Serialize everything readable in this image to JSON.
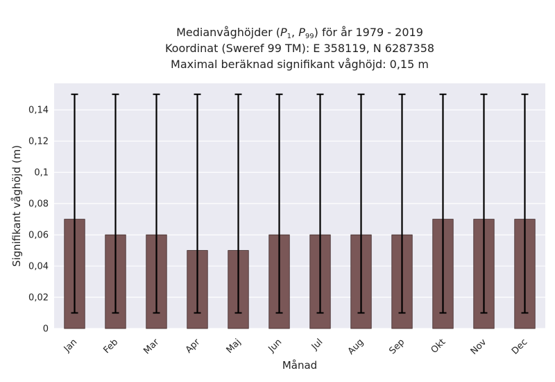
{
  "chart_data": {
    "type": "bar",
    "title": {
      "prefix": "Medianvåghöjder (",
      "p1_base": "P",
      "p1_sub": "1",
      "separator": ", ",
      "p99_base": "P",
      "p99_sub": "99",
      "suffix": ") för år 1979 - 2019",
      "line2": "Koordinat (Sweref 99 TM): E 358119, N 6287358",
      "line3": "Maximal beräknad signifikant våghöjd: 0,15 m"
    },
    "xlabel": "Månad",
    "ylabel": "Signifikant våghöjd (m)",
    "categories": [
      "Jan",
      "Feb",
      "Mar",
      "Apr",
      "Maj",
      "Jun",
      "Jul",
      "Aug",
      "Sep",
      "Okt",
      "Nov",
      "Dec"
    ],
    "values": [
      0.07,
      0.06,
      0.06,
      0.05,
      0.05,
      0.06,
      0.06,
      0.06,
      0.06,
      0.07,
      0.07,
      0.07
    ],
    "error_low": [
      0.01,
      0.01,
      0.01,
      0.01,
      0.01,
      0.01,
      0.01,
      0.01,
      0.01,
      0.01,
      0.01,
      0.01
    ],
    "error_high": [
      0.15,
      0.15,
      0.15,
      0.15,
      0.15,
      0.15,
      0.15,
      0.15,
      0.15,
      0.15,
      0.15,
      0.15
    ],
    "ylim": [
      0,
      0.157
    ],
    "yticks": [
      0,
      0.02,
      0.04,
      0.06,
      0.08,
      0.1,
      0.12,
      0.14
    ],
    "ytick_labels": [
      "0",
      "0,02",
      "0,04",
      "0,06",
      "0,08",
      "0,1",
      "0,12",
      "0,14"
    ],
    "grid": true,
    "colors": {
      "bar": "#7a5757",
      "bar_edge": "#3d2626",
      "error": "#000000",
      "plot_background": "#eaeaf2",
      "grid": "#ffffff"
    }
  }
}
